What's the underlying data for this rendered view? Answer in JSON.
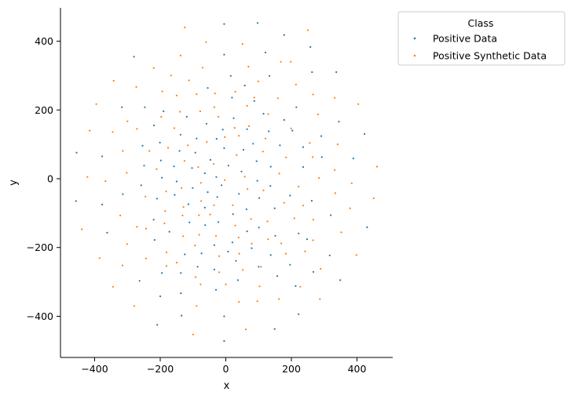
{
  "chart_data": {
    "type": "scatter",
    "title": "",
    "xlabel": "x",
    "ylabel": "y",
    "xlim": [
      -500,
      500
    ],
    "ylim": [
      -520,
      500
    ],
    "xticks": [
      -400,
      -200,
      0,
      200,
      400
    ],
    "yticks": [
      -400,
      -200,
      0,
      200,
      400
    ],
    "xtick_labels": [
      "−400",
      "−200",
      "0",
      "200",
      "400"
    ],
    "ytick_labels": [
      "−400",
      "−200",
      "0",
      "200",
      "400"
    ],
    "grid": false,
    "legend": {
      "title": "Class",
      "placement": "outside-top-right"
    },
    "series": [
      {
        "name": "Positive Data",
        "color": "#1f77b4",
        "points": [
          [
            -5,
            450
          ],
          [
            97,
            453
          ],
          [
            178,
            418
          ],
          [
            258,
            383
          ],
          [
            -280,
            355
          ],
          [
            -5,
            361
          ],
          [
            121,
            367
          ],
          [
            263,
            310
          ],
          [
            337,
            310
          ],
          [
            -55,
            264
          ],
          [
            15,
            299
          ],
          [
            58,
            271
          ],
          [
            133,
            299
          ],
          [
            -317,
            208
          ],
          [
            -247,
            208
          ],
          [
            -190,
            196
          ],
          [
            -119,
            180
          ],
          [
            -59,
            160
          ],
          [
            -9,
            143
          ],
          [
            19,
            236
          ],
          [
            87,
            226
          ],
          [
            115,
            189
          ],
          [
            178,
            171
          ],
          [
            215,
            208
          ],
          [
            -219,
            155
          ],
          [
            -138,
            128
          ],
          [
            -89,
            117
          ],
          [
            -28,
            116
          ],
          [
            24,
            176
          ],
          [
            65,
            144
          ],
          [
            131,
            138
          ],
          [
            203,
            140
          ],
          [
            345,
            166
          ],
          [
            423,
            130
          ],
          [
            -455,
            76
          ],
          [
            -377,
            65
          ],
          [
            -254,
            96
          ],
          [
            -201,
            105
          ],
          [
            -141,
            81
          ],
          [
            -93,
            76
          ],
          [
            -47,
            55
          ],
          [
            -5,
            89
          ],
          [
            54,
            84
          ],
          [
            83,
            102
          ],
          [
            165,
            97
          ],
          [
            236,
            92
          ],
          [
            291,
            124
          ],
          [
            -249,
            38
          ],
          [
            -198,
            53
          ],
          [
            -158,
            36
          ],
          [
            -103,
            31
          ],
          [
            -64,
            16
          ],
          [
            -29,
            5
          ],
          [
            8,
            38
          ],
          [
            48,
            21
          ],
          [
            94,
            51
          ],
          [
            137,
            35
          ],
          [
            236,
            34
          ],
          [
            293,
            63
          ],
          [
            389,
            59
          ],
          [
            -258,
            -19
          ],
          [
            -195,
            3
          ],
          [
            -150,
            -8
          ],
          [
            -101,
            -27
          ],
          [
            -55,
            -39
          ],
          [
            -13,
            -19
          ],
          [
            40,
            -44
          ],
          [
            96,
            -6
          ],
          [
            136,
            -21
          ],
          [
            196,
            -49
          ],
          [
            262,
            -64
          ],
          [
            -457,
            -65
          ],
          [
            -377,
            -75
          ],
          [
            -314,
            -45
          ],
          [
            -210,
            -58
          ],
          [
            -156,
            -47
          ],
          [
            -114,
            -74
          ],
          [
            -64,
            -84
          ],
          [
            -26,
            -53
          ],
          [
            22,
            -103
          ],
          [
            63,
            -89
          ],
          [
            102,
            -56
          ],
          [
            149,
            -86
          ],
          [
            320,
            -106
          ],
          [
            431,
            -141
          ],
          [
            -362,
            -157
          ],
          [
            -220,
            -119
          ],
          [
            -172,
            -154
          ],
          [
            -111,
            -127
          ],
          [
            -63,
            -135
          ],
          [
            -23,
            -126
          ],
          [
            20,
            -185
          ],
          [
            65,
            -153
          ],
          [
            101,
            -142
          ],
          [
            151,
            -166
          ],
          [
            222,
            -159
          ],
          [
            -217,
            -178
          ],
          [
            -125,
            -220
          ],
          [
            -74,
            -217
          ],
          [
            -35,
            -193
          ],
          [
            7,
            -212
          ],
          [
            79,
            -202
          ],
          [
            137,
            -222
          ],
          [
            248,
            -176
          ],
          [
            317,
            -223
          ],
          [
            -263,
            -297
          ],
          [
            -195,
            -274
          ],
          [
            -137,
            -274
          ],
          [
            -86,
            -256
          ],
          [
            -35,
            -264
          ],
          [
            31,
            -239
          ],
          [
            100,
            -256
          ],
          [
            196,
            -250
          ],
          [
            267,
            -271
          ],
          [
            349,
            -295
          ],
          [
            -200,
            -342
          ],
          [
            -137,
            -333
          ],
          [
            -30,
            -323
          ],
          [
            37,
            -295
          ],
          [
            157,
            -283
          ],
          [
            213,
            -312
          ],
          [
            -209,
            -425
          ],
          [
            -135,
            -398
          ],
          [
            -5,
            -400
          ],
          [
            149,
            -437
          ],
          [
            222,
            -394
          ],
          [
            -5,
            -472
          ]
        ]
      },
      {
        "name": "Positive Synthetic Data",
        "color": "#ff7f0e",
        "points": [
          [
            -125,
            440
          ],
          [
            -60,
            397
          ],
          [
            51,
            392
          ],
          [
            250,
            432
          ],
          [
            168,
            340
          ],
          [
            -220,
            322
          ],
          [
            -138,
            358
          ],
          [
            -71,
            323
          ],
          [
            69,
            326
          ],
          [
            198,
            340
          ],
          [
            -342,
            285
          ],
          [
            -273,
            267
          ],
          [
            -167,
            300
          ],
          [
            -112,
            286
          ],
          [
            99,
            283
          ],
          [
            214,
            274
          ],
          [
            266,
            245
          ],
          [
            -194,
            254
          ],
          [
            -150,
            242
          ],
          [
            -89,
            246
          ],
          [
            -33,
            248
          ],
          [
            29,
            253
          ],
          [
            87,
            236
          ],
          [
            159,
            234
          ],
          [
            332,
            235
          ],
          [
            404,
            217
          ],
          [
            -395,
            217
          ],
          [
            -300,
            167
          ],
          [
            -197,
            180
          ],
          [
            -140,
            195
          ],
          [
            -78,
            196
          ],
          [
            -35,
            208
          ],
          [
            65,
            212
          ],
          [
            129,
            188
          ],
          [
            281,
            187
          ],
          [
            -415,
            140
          ],
          [
            -345,
            136
          ],
          [
            -271,
            145
          ],
          [
            -157,
            147
          ],
          [
            -23,
            180
          ],
          [
            27,
            148
          ],
          [
            71,
            153
          ],
          [
            199,
            146
          ],
          [
            -314,
            81
          ],
          [
            -233,
            81
          ],
          [
            -176,
            90
          ],
          [
            -116,
            97
          ],
          [
            -58,
            107
          ],
          [
            -3,
            121
          ],
          [
            40,
            125
          ],
          [
            121,
            117
          ],
          [
            256,
            104
          ],
          [
            341,
            100
          ],
          [
            -302,
            17
          ],
          [
            -211,
            28
          ],
          [
            -126,
            52
          ],
          [
            -84,
            34
          ],
          [
            -37,
            43
          ],
          [
            33,
            69
          ],
          [
            113,
            79
          ],
          [
            184,
            62
          ],
          [
            265,
            63
          ],
          [
            461,
            35
          ],
          [
            -422,
            5
          ],
          [
            -367,
            -7
          ],
          [
            -182,
            -37
          ],
          [
            -135,
            -27
          ],
          [
            -76,
            -12
          ],
          [
            -3,
            -4
          ],
          [
            58,
            6
          ],
          [
            163,
            15
          ],
          [
            222,
            -23
          ],
          [
            284,
            2
          ],
          [
            384,
            -13
          ],
          [
            332,
            25
          ],
          [
            -322,
            -107
          ],
          [
            -245,
            -52
          ],
          [
            -185,
            -94
          ],
          [
            -129,
            -82
          ],
          [
            -75,
            -65
          ],
          [
            -36,
            -77
          ],
          [
            21,
            -77
          ],
          [
            66,
            -30
          ],
          [
            115,
            -34
          ],
          [
            178,
            -70
          ],
          [
            236,
            -78
          ],
          [
            334,
            -42
          ],
          [
            451,
            -57
          ],
          [
            -271,
            -140
          ],
          [
            -187,
            -130
          ],
          [
            -132,
            -107
          ],
          [
            -82,
            -106
          ],
          [
            -48,
            -104
          ],
          [
            29,
            -136
          ],
          [
            77,
            -117
          ],
          [
            127,
            -124
          ],
          [
            209,
            -115
          ],
          [
            267,
            -119
          ],
          [
            379,
            -86
          ],
          [
            -439,
            -147
          ],
          [
            -301,
            -190
          ],
          [
            -243,
            -145
          ],
          [
            -181,
            -214
          ],
          [
            -130,
            -167
          ],
          [
            -81,
            -163
          ],
          [
            -30,
            -166
          ],
          [
            39,
            -171
          ],
          [
            129,
            -176
          ],
          [
            169,
            -188
          ],
          [
            266,
            -179
          ],
          [
            352,
            -156
          ],
          [
            -385,
            -231
          ],
          [
            -243,
            -232
          ],
          [
            -150,
            -244
          ],
          [
            -94,
            -194
          ],
          [
            -20,
            -225
          ],
          [
            41,
            -218
          ],
          [
            79,
            -189
          ],
          [
            183,
            -218
          ],
          [
            242,
            -211
          ],
          [
            398,
            -222
          ],
          [
            -315,
            -252
          ],
          [
            -181,
            -254
          ],
          [
            -92,
            -286
          ],
          [
            -20,
            -272
          ],
          [
            52,
            -265
          ],
          [
            107,
            -256
          ],
          [
            289,
            -262
          ],
          [
            -344,
            -314
          ],
          [
            -77,
            -307
          ],
          [
            0,
            -307
          ],
          [
            103,
            -313
          ],
          [
            227,
            -314
          ],
          [
            -279,
            -370
          ],
          [
            -89,
            -370
          ],
          [
            40,
            -358
          ],
          [
            96,
            -356
          ],
          [
            162,
            -350
          ],
          [
            287,
            -350
          ],
          [
            -100,
            -453
          ],
          [
            61,
            -438
          ]
        ]
      }
    ]
  }
}
